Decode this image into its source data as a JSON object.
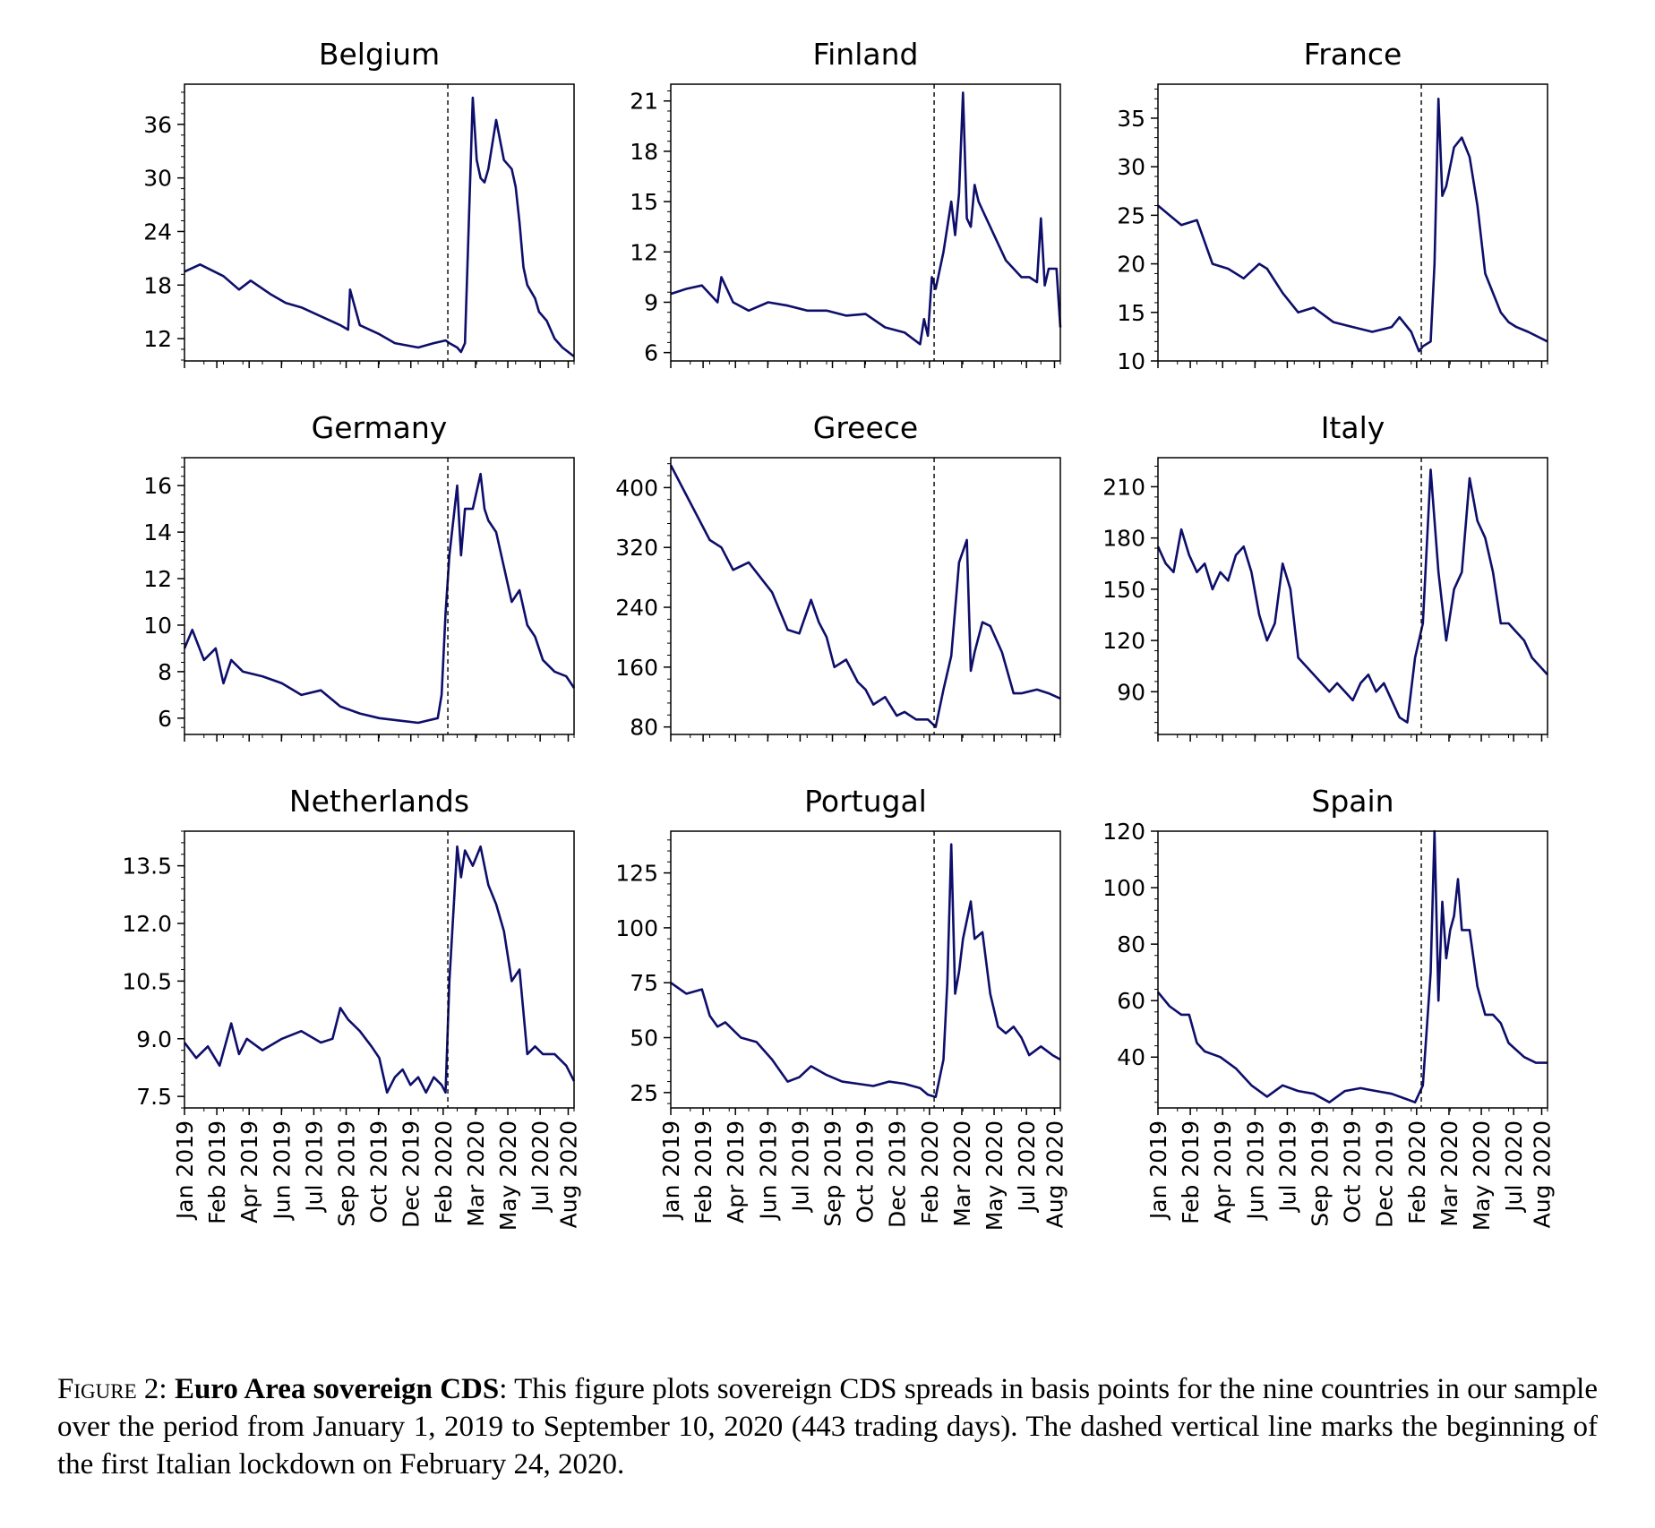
{
  "figure": {
    "line_color": "#0e0e6b",
    "event_marker": "dashed vertical line"
  },
  "caption": {
    "label": "Figure 2:",
    "title": "Euro Area sovereign CDS",
    "separator": ":",
    "text": " This figure plots sovereign CDS spreads in basis points for the nine countries in our sample over the period from January 1, 2019 to September 10, 2020 (443 trading days). The dashed vertical line marks the beginning of the first Italian lockdown on February 24, 2020."
  },
  "chart_data": [
    {
      "type": "line",
      "title": "Belgium",
      "ylim": [
        9.5,
        40.5
      ],
      "yticks": [
        "12",
        "18",
        "24",
        "30",
        "36"
      ],
      "ytick_values": [
        12,
        18,
        24,
        30,
        36
      ],
      "x": [
        0,
        0.04,
        0.1,
        0.14,
        0.17,
        0.22,
        0.26,
        0.3,
        0.35,
        0.4,
        0.42,
        0.425,
        0.45,
        0.5,
        0.54,
        0.6,
        0.64,
        0.67,
        0.68,
        0.7,
        0.71,
        0.72,
        0.73,
        0.74,
        0.75,
        0.76,
        0.77,
        0.78,
        0.8,
        0.82,
        0.84,
        0.85,
        0.86,
        0.87,
        0.88,
        0.9,
        0.91,
        0.93,
        0.95,
        0.97,
        1
      ],
      "values": [
        19.5,
        20.3,
        19,
        17.5,
        18.5,
        17,
        16,
        15.5,
        14.5,
        13.5,
        13,
        17.5,
        13.5,
        12.5,
        11.5,
        11,
        11.5,
        11.8,
        11.5,
        11,
        10.5,
        11.5,
        25,
        39,
        32,
        30,
        29.5,
        31,
        36.5,
        32,
        31,
        29,
        25,
        20,
        18,
        16.5,
        15,
        14,
        12,
        11,
        10
      ]
    },
    {
      "type": "line",
      "title": "Finland",
      "ylim": [
        5.5,
        22
      ],
      "yticks": [
        "6",
        "9",
        "12",
        "15",
        "18",
        "21"
      ],
      "ytick_values": [
        6,
        9,
        12,
        15,
        18,
        21
      ],
      "x": [
        0,
        0.04,
        0.08,
        0.12,
        0.13,
        0.16,
        0.2,
        0.25,
        0.3,
        0.35,
        0.4,
        0.45,
        0.5,
        0.55,
        0.6,
        0.64,
        0.65,
        0.66,
        0.67,
        0.68,
        0.7,
        0.72,
        0.73,
        0.74,
        0.75,
        0.76,
        0.77,
        0.78,
        0.79,
        0.8,
        0.82,
        0.84,
        0.86,
        0.88,
        0.9,
        0.92,
        0.94,
        0.95,
        0.96,
        0.97,
        0.99,
        1
      ],
      "values": [
        9.5,
        9.8,
        10,
        9,
        10.5,
        9,
        8.5,
        9,
        8.8,
        8.5,
        8.5,
        8.2,
        8.3,
        7.5,
        7.2,
        6.5,
        8,
        7,
        10.5,
        9.8,
        12,
        15,
        13,
        15.5,
        21.5,
        14,
        13.5,
        16,
        15,
        14.5,
        13.5,
        12.5,
        11.5,
        11,
        10.5,
        10.5,
        10.2,
        14,
        10,
        11,
        11,
        7.5
      ]
    },
    {
      "type": "line",
      "title": "France",
      "ylim": [
        10,
        38.5
      ],
      "yticks": [
        "10",
        "15",
        "20",
        "25",
        "30",
        "35"
      ],
      "ytick_values": [
        10,
        15,
        20,
        25,
        30,
        35
      ],
      "x": [
        0,
        0.03,
        0.06,
        0.1,
        0.14,
        0.18,
        0.22,
        0.26,
        0.28,
        0.32,
        0.36,
        0.4,
        0.45,
        0.5,
        0.55,
        0.6,
        0.62,
        0.65,
        0.66,
        0.67,
        0.68,
        0.7,
        0.71,
        0.72,
        0.73,
        0.74,
        0.76,
        0.78,
        0.8,
        0.82,
        0.84,
        0.86,
        0.88,
        0.9,
        0.92,
        0.95,
        1
      ],
      "values": [
        26,
        25,
        24,
        24.5,
        20,
        19.5,
        18.5,
        20,
        19.5,
        17,
        15,
        15.5,
        14,
        13.5,
        13,
        13.5,
        14.5,
        13,
        12,
        11,
        11.5,
        12,
        20,
        37,
        27,
        28,
        32,
        33,
        31,
        26,
        19,
        17,
        15,
        14,
        13.5,
        13,
        12
      ]
    },
    {
      "type": "line",
      "title": "Germany",
      "ylim": [
        5.3,
        17.2
      ],
      "yticks": [
        "6",
        "8",
        "10",
        "12",
        "14",
        "16"
      ],
      "ytick_values": [
        6,
        8,
        10,
        12,
        14,
        16
      ],
      "x": [
        0,
        0.02,
        0.05,
        0.08,
        0.1,
        0.12,
        0.15,
        0.2,
        0.25,
        0.3,
        0.35,
        0.4,
        0.45,
        0.5,
        0.55,
        0.6,
        0.65,
        0.66,
        0.67,
        0.68,
        0.7,
        0.71,
        0.72,
        0.74,
        0.76,
        0.77,
        0.78,
        0.8,
        0.82,
        0.84,
        0.86,
        0.88,
        0.9,
        0.92,
        0.95,
        0.98,
        1
      ],
      "values": [
        9,
        9.8,
        8.5,
        9,
        7.5,
        8.5,
        8,
        7.8,
        7.5,
        7,
        7.2,
        6.5,
        6.2,
        6,
        5.9,
        5.8,
        6,
        7,
        10.5,
        13,
        16,
        13,
        15,
        15,
        16.5,
        15,
        14.5,
        14,
        12.5,
        11,
        11.5,
        10,
        9.5,
        8.5,
        8,
        7.8,
        7.3
      ]
    },
    {
      "type": "line",
      "title": "Greece",
      "ylim": [
        70,
        440
      ],
      "yticks": [
        "80",
        "160",
        "240",
        "320",
        "400"
      ],
      "ytick_values": [
        80,
        160,
        240,
        320,
        400
      ],
      "x": [
        0,
        0.03,
        0.06,
        0.1,
        0.13,
        0.16,
        0.2,
        0.23,
        0.26,
        0.3,
        0.33,
        0.36,
        0.38,
        0.4,
        0.42,
        0.45,
        0.48,
        0.5,
        0.52,
        0.55,
        0.58,
        0.6,
        0.63,
        0.66,
        0.68,
        0.7,
        0.72,
        0.74,
        0.76,
        0.77,
        0.78,
        0.8,
        0.82,
        0.85,
        0.88,
        0.9,
        0.94,
        0.97,
        1
      ],
      "values": [
        430,
        400,
        370,
        330,
        320,
        290,
        300,
        280,
        260,
        210,
        205,
        250,
        220,
        200,
        160,
        170,
        140,
        130,
        110,
        120,
        95,
        100,
        90,
        90,
        80,
        130,
        175,
        300,
        330,
        155,
        180,
        220,
        215,
        180,
        125,
        125,
        130,
        125,
        118
      ]
    },
    {
      "type": "line",
      "title": "Italy",
      "ylim": [
        65,
        227
      ],
      "yticks": [
        "90",
        "120",
        "150",
        "180",
        "210"
      ],
      "ytick_values": [
        90,
        120,
        150,
        180,
        210
      ],
      "x": [
        0,
        0.02,
        0.04,
        0.06,
        0.08,
        0.1,
        0.12,
        0.14,
        0.16,
        0.18,
        0.2,
        0.22,
        0.24,
        0.26,
        0.28,
        0.3,
        0.32,
        0.34,
        0.36,
        0.38,
        0.4,
        0.42,
        0.44,
        0.46,
        0.48,
        0.5,
        0.52,
        0.54,
        0.56,
        0.58,
        0.6,
        0.62,
        0.64,
        0.66,
        0.68,
        0.7,
        0.72,
        0.74,
        0.76,
        0.78,
        0.8,
        0.82,
        0.84,
        0.86,
        0.88,
        0.9,
        0.92,
        0.94,
        0.96,
        0.98,
        1
      ],
      "values": [
        175,
        165,
        160,
        185,
        170,
        160,
        165,
        150,
        160,
        155,
        170,
        175,
        160,
        135,
        120,
        130,
        165,
        150,
        110,
        105,
        100,
        95,
        90,
        95,
        90,
        85,
        95,
        100,
        90,
        95,
        85,
        75,
        72,
        110,
        130,
        220,
        160,
        120,
        150,
        160,
        215,
        190,
        180,
        160,
        130,
        130,
        125,
        120,
        110,
        105,
        100
      ]
    },
    {
      "type": "line",
      "title": "Netherlands",
      "ylim": [
        7.2,
        14.4
      ],
      "yticks": [
        "7.5",
        "9.0",
        "10.5",
        "12.0",
        "13.5"
      ],
      "ytick_values": [
        7.5,
        9,
        10.5,
        12,
        13.5
      ],
      "x": [
        0,
        0.03,
        0.06,
        0.09,
        0.12,
        0.14,
        0.16,
        0.2,
        0.25,
        0.3,
        0.35,
        0.38,
        0.4,
        0.42,
        0.45,
        0.48,
        0.5,
        0.52,
        0.54,
        0.56,
        0.58,
        0.6,
        0.62,
        0.64,
        0.66,
        0.67,
        0.68,
        0.7,
        0.71,
        0.72,
        0.74,
        0.76,
        0.78,
        0.8,
        0.82,
        0.84,
        0.86,
        0.88,
        0.9,
        0.92,
        0.95,
        0.98,
        1
      ],
      "values": [
        8.9,
        8.5,
        8.8,
        8.3,
        9.4,
        8.6,
        9.0,
        8.7,
        9.0,
        9.2,
        8.9,
        9.0,
        9.8,
        9.5,
        9.2,
        8.8,
        8.5,
        7.6,
        8.0,
        8.2,
        7.8,
        8.0,
        7.6,
        8.0,
        7.8,
        7.6,
        10.5,
        14.0,
        13.2,
        13.9,
        13.5,
        14.0,
        13.0,
        12.5,
        11.8,
        10.5,
        10.8,
        8.6,
        8.8,
        8.6,
        8.6,
        8.3,
        7.9
      ]
    },
    {
      "type": "line",
      "title": "Portugal",
      "ylim": [
        18,
        144
      ],
      "yticks": [
        "25",
        "50",
        "75",
        "100",
        "125"
      ],
      "ytick_values": [
        25,
        50,
        75,
        100,
        125
      ],
      "x": [
        0,
        0.04,
        0.08,
        0.1,
        0.12,
        0.14,
        0.18,
        0.22,
        0.26,
        0.3,
        0.33,
        0.36,
        0.4,
        0.44,
        0.48,
        0.52,
        0.56,
        0.6,
        0.64,
        0.66,
        0.68,
        0.7,
        0.71,
        0.72,
        0.73,
        0.74,
        0.75,
        0.77,
        0.78,
        0.8,
        0.82,
        0.84,
        0.86,
        0.88,
        0.9,
        0.92,
        0.95,
        0.98,
        1
      ],
      "values": [
        75,
        70,
        72,
        60,
        55,
        57,
        50,
        48,
        40,
        30,
        32,
        37,
        33,
        30,
        29,
        28,
        30,
        29,
        27,
        24,
        23,
        40,
        75,
        138,
        70,
        80,
        95,
        112,
        95,
        98,
        70,
        55,
        52,
        55,
        50,
        42,
        46,
        42,
        40
      ]
    },
    {
      "type": "line",
      "title": "Spain",
      "ylim": [
        22,
        120
      ],
      "yticks": [
        "40",
        "60",
        "80",
        "100",
        "120"
      ],
      "ytick_values": [
        40,
        60,
        80,
        100,
        120
      ],
      "x": [
        0,
        0.03,
        0.06,
        0.08,
        0.1,
        0.12,
        0.16,
        0.2,
        0.24,
        0.28,
        0.32,
        0.36,
        0.4,
        0.44,
        0.48,
        0.52,
        0.56,
        0.6,
        0.64,
        0.66,
        0.68,
        0.7,
        0.71,
        0.72,
        0.73,
        0.74,
        0.75,
        0.76,
        0.77,
        0.78,
        0.8,
        0.82,
        0.84,
        0.86,
        0.88,
        0.9,
        0.94,
        0.97,
        1
      ],
      "values": [
        63,
        58,
        55,
        55,
        45,
        42,
        40,
        36,
        30,
        26,
        30,
        28,
        27,
        24,
        28,
        29,
        28,
        27,
        25,
        24,
        30,
        70,
        120,
        60,
        95,
        75,
        85,
        90,
        103,
        85,
        85,
        65,
        55,
        55,
        52,
        45,
        40,
        38,
        38
      ]
    }
  ],
  "x_axis": {
    "ticks": [
      "Jan 2019",
      "Feb 2019",
      "Apr 2019",
      "Jun 2019",
      "Jul 2019",
      "Sep 2019",
      "Oct 2019",
      "Dec 2019",
      "Feb 2020",
      "Mar 2020",
      "May 2020",
      "Jul 2020",
      "Aug 2020"
    ],
    "tick_positions": [
      0.0,
      0.083,
      0.166,
      0.249,
      0.332,
      0.415,
      0.498,
      0.581,
      0.664,
      0.747,
      0.83,
      0.913,
      0.985
    ],
    "event_position": 0.676
  }
}
